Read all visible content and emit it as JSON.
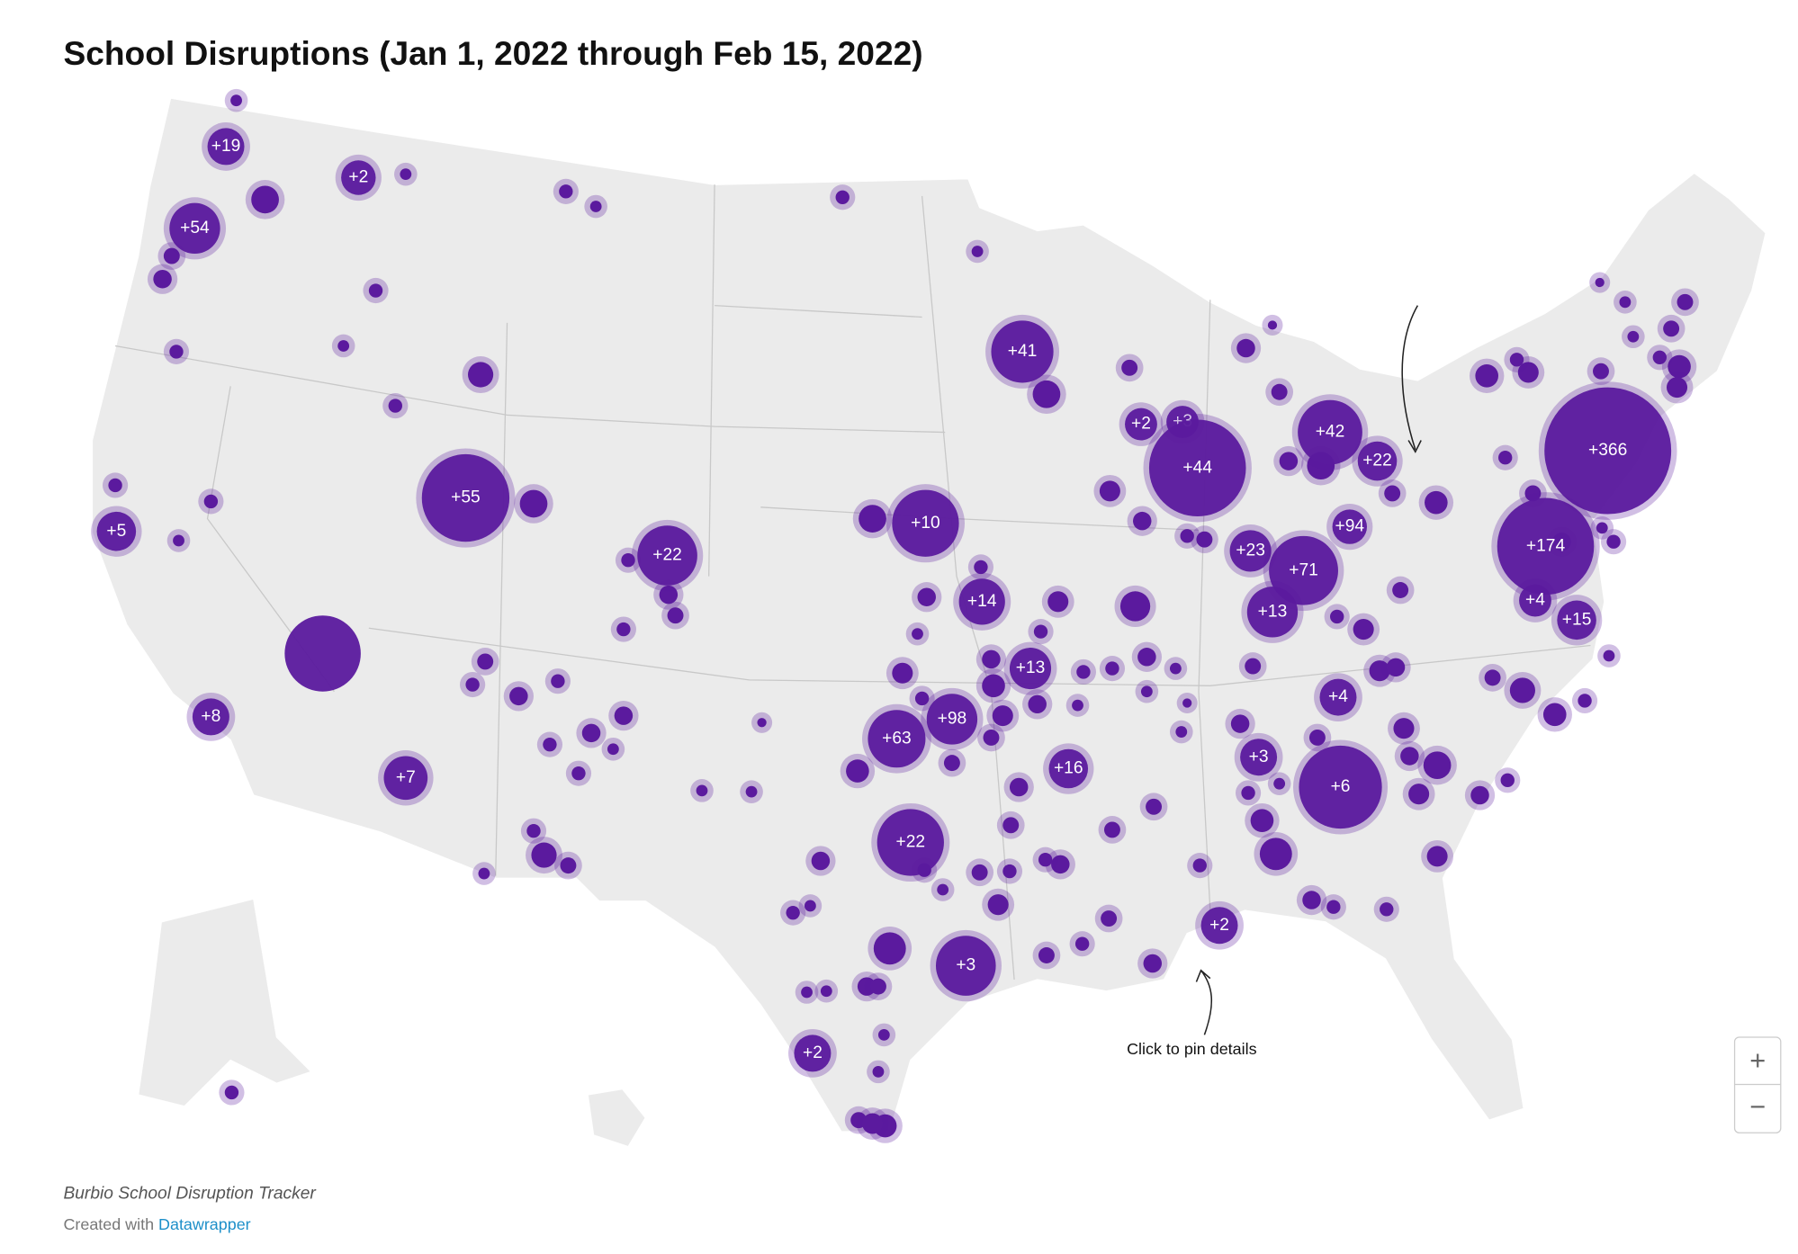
{
  "title": "School Disruptions (Jan 1, 2022 through Feb 15, 2022)",
  "annotation": "Click to pin details",
  "bubble_labels": [
    "+19",
    "+2",
    "+54",
    "+5",
    "+55",
    "+22",
    "+8",
    "+7",
    "+41",
    "+10",
    "+2",
    "+3",
    "+44",
    "+42",
    "+22",
    "+366",
    "+94",
    "+23",
    "+71",
    "+174",
    "+13",
    "+4",
    "+15",
    "+14",
    "+13",
    "+4",
    "+98",
    "+63",
    "+16",
    "+3",
    "+6",
    "+22",
    "+2",
    "+3",
    "+2"
  ],
  "footer": {
    "source": "Burbio School Disruption Tracker",
    "credit": "Created with",
    "credit_link": "Datawrapper"
  },
  "zoom": {
    "in": "+",
    "out": "−"
  }
}
